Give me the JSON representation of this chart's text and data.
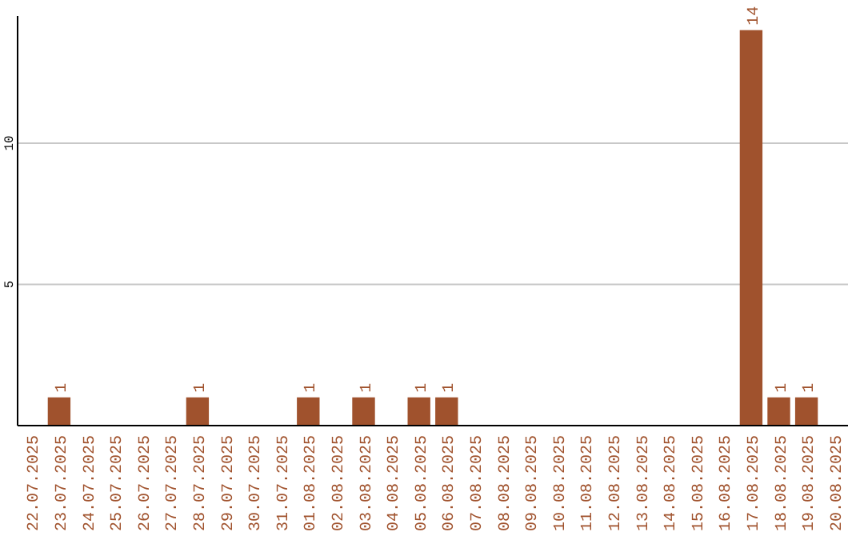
{
  "chart_data": {
    "type": "bar",
    "categories": [
      "22.07.2025",
      "23.07.2025",
      "24.07.2025",
      "25.07.2025",
      "26.07.2025",
      "27.07.2025",
      "28.07.2025",
      "29.07.2025",
      "30.07.2025",
      "31.07.2025",
      "01.08.2025",
      "02.08.2025",
      "03.08.2025",
      "04.08.2025",
      "05.08.2025",
      "06.08.2025",
      "07.08.2025",
      "08.08.2025",
      "09.08.2025",
      "10.08.2025",
      "11.08.2025",
      "12.08.2025",
      "13.08.2025",
      "14.08.2025",
      "15.08.2025",
      "16.08.2025",
      "17.08.2025",
      "18.08.2025",
      "19.08.2025",
      "20.08.2025"
    ],
    "values": [
      0,
      1,
      0,
      0,
      0,
      0,
      1,
      0,
      0,
      0,
      1,
      0,
      1,
      0,
      1,
      1,
      0,
      0,
      0,
      0,
      0,
      0,
      0,
      0,
      0,
      0,
      14,
      1,
      1,
      0
    ],
    "value_labels": [
      null,
      "1",
      null,
      null,
      null,
      null,
      "1",
      null,
      null,
      null,
      "1",
      null,
      "1",
      null,
      "1",
      "1",
      null,
      null,
      null,
      null,
      null,
      null,
      null,
      null,
      null,
      null,
      "14",
      "1",
      "1",
      null
    ],
    "color": "#a0522d",
    "ylim": [
      0,
      14.5
    ],
    "yticks": [
      5,
      10
    ],
    "grid": "y"
  }
}
